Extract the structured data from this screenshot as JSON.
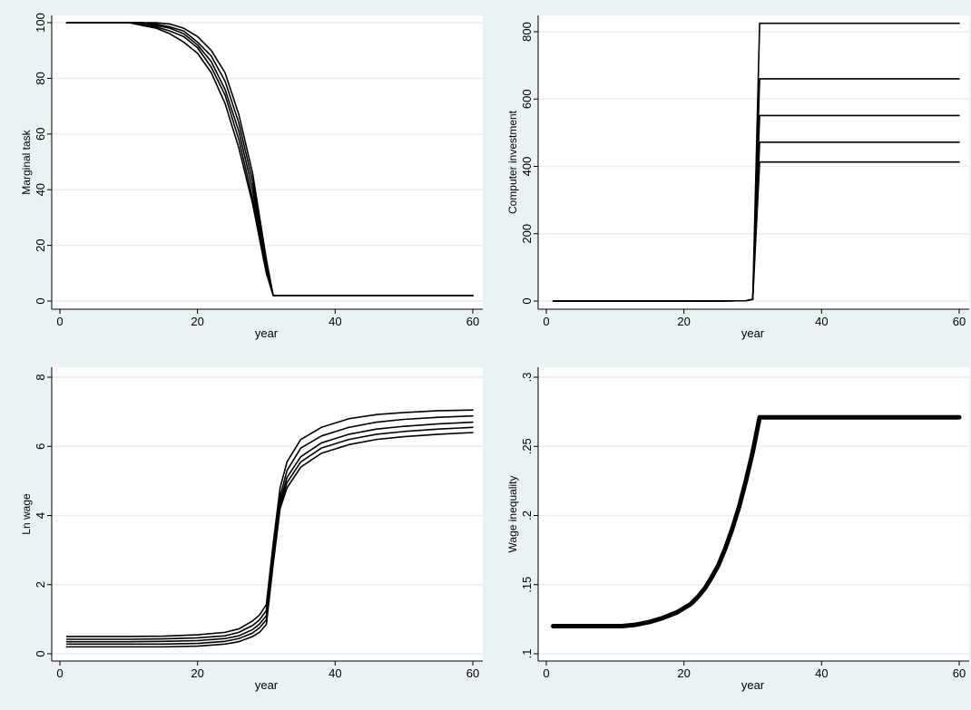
{
  "chart_data": [
    {
      "type": "line",
      "xlabel": "year",
      "ylabel": "Marginal task",
      "xlim": [
        0,
        60
      ],
      "ylim": [
        0,
        100
      ],
      "xticks": [
        0,
        20,
        40,
        60
      ],
      "yticks": [
        0,
        20,
        40,
        60,
        80,
        100
      ],
      "grid": true,
      "line_color": "#000000",
      "series": [
        {
          "x": [
            1,
            8,
            10,
            12,
            14,
            16,
            18,
            20,
            22,
            24,
            26,
            28,
            30,
            31,
            60
          ],
          "y": [
            100,
            100,
            100,
            99,
            98,
            96,
            93,
            89,
            82,
            71,
            55,
            35,
            10,
            2,
            2
          ]
        },
        {
          "x": [
            1,
            10,
            12,
            14,
            16,
            18,
            20,
            22,
            24,
            26,
            28,
            30,
            31,
            60
          ],
          "y": [
            100,
            100,
            99.5,
            98.5,
            97,
            95,
            91,
            84,
            74,
            58,
            37,
            11,
            2,
            2
          ]
        },
        {
          "x": [
            1,
            11,
            12,
            14,
            16,
            18,
            20,
            22,
            24,
            26,
            28,
            30,
            31,
            60
          ],
          "y": [
            100,
            100,
            100,
            99,
            98,
            96,
            92,
            86,
            76,
            61,
            40,
            12,
            2,
            2
          ]
        },
        {
          "x": [
            1,
            12,
            14,
            16,
            18,
            20,
            22,
            24,
            26,
            28,
            30,
            31,
            60
          ],
          "y": [
            100,
            100,
            99.5,
            98.5,
            97,
            93,
            88,
            79,
            64,
            43,
            13,
            2,
            2
          ]
        },
        {
          "x": [
            1,
            14,
            16,
            18,
            20,
            22,
            24,
            26,
            28,
            30,
            31,
            60
          ],
          "y": [
            100,
            100,
            99.5,
            98,
            95,
            90,
            82,
            67,
            46,
            15,
            2,
            2
          ]
        }
      ]
    },
    {
      "type": "line",
      "xlabel": "year",
      "ylabel": "Computer investment",
      "xlim": [
        0,
        60
      ],
      "ylim": [
        0,
        800
      ],
      "xticks": [
        0,
        20,
        40,
        60
      ],
      "yticks": [
        0,
        200,
        400,
        600,
        800
      ],
      "grid": true,
      "line_color": "#000000",
      "series": [
        {
          "x": [
            1,
            25,
            29,
            30,
            31,
            60
          ],
          "y": [
            0,
            0,
            1,
            5,
            413,
            413
          ]
        },
        {
          "x": [
            1,
            25,
            29,
            30,
            31,
            60
          ],
          "y": [
            0,
            0,
            1,
            5,
            472,
            472
          ]
        },
        {
          "x": [
            1,
            25,
            29,
            30,
            31,
            60
          ],
          "y": [
            0,
            0,
            1,
            5,
            551,
            551
          ]
        },
        {
          "x": [
            1,
            25,
            29,
            30,
            31,
            60
          ],
          "y": [
            0,
            0,
            1,
            5,
            660,
            660
          ]
        },
        {
          "x": [
            1,
            25,
            29,
            30,
            31,
            60
          ],
          "y": [
            0,
            0,
            1,
            5,
            825,
            825
          ]
        }
      ]
    },
    {
      "type": "line",
      "xlabel": "year",
      "ylabel": "Ln wage",
      "xlim": [
        0,
        60
      ],
      "ylim": [
        0,
        8
      ],
      "xticks": [
        0,
        20,
        40,
        60
      ],
      "yticks": [
        0,
        2,
        4,
        6,
        8
      ],
      "grid": true,
      "line_color": "#000000",
      "series": [
        {
          "x": [
            1,
            10,
            15,
            20,
            24,
            26,
            28,
            29,
            30,
            31,
            32,
            33,
            35,
            38,
            42,
            46,
            50,
            55,
            60
          ],
          "y": [
            0.2,
            0.2,
            0.2,
            0.22,
            0.28,
            0.35,
            0.5,
            0.62,
            0.85,
            2.6,
            4.2,
            4.8,
            5.4,
            5.8,
            6.05,
            6.2,
            6.28,
            6.35,
            6.4
          ]
        },
        {
          "x": [
            1,
            10,
            15,
            20,
            24,
            26,
            28,
            29,
            30,
            31,
            32,
            33,
            35,
            38,
            42,
            46,
            50,
            55,
            60
          ],
          "y": [
            0.28,
            0.28,
            0.28,
            0.3,
            0.36,
            0.44,
            0.6,
            0.75,
            0.98,
            2.75,
            4.3,
            4.95,
            5.55,
            5.95,
            6.2,
            6.35,
            6.43,
            6.5,
            6.55
          ]
        },
        {
          "x": [
            1,
            10,
            15,
            20,
            24,
            26,
            28,
            29,
            30,
            31,
            32,
            33,
            35,
            38,
            42,
            46,
            50,
            55,
            60
          ],
          "y": [
            0.35,
            0.35,
            0.36,
            0.38,
            0.44,
            0.52,
            0.7,
            0.86,
            1.1,
            2.9,
            4.4,
            5.1,
            5.7,
            6.1,
            6.35,
            6.5,
            6.58,
            6.65,
            6.7
          ]
        },
        {
          "x": [
            1,
            10,
            15,
            20,
            24,
            26,
            28,
            29,
            30,
            31,
            32,
            33,
            35,
            38,
            42,
            46,
            50,
            55,
            60
          ],
          "y": [
            0.42,
            0.42,
            0.43,
            0.46,
            0.52,
            0.62,
            0.82,
            0.98,
            1.25,
            3.05,
            4.55,
            5.3,
            5.95,
            6.3,
            6.55,
            6.7,
            6.78,
            6.84,
            6.88
          ]
        },
        {
          "x": [
            1,
            10,
            15,
            20,
            24,
            26,
            28,
            29,
            30,
            31,
            32,
            33,
            35,
            38,
            42,
            46,
            50,
            55,
            60
          ],
          "y": [
            0.5,
            0.5,
            0.51,
            0.55,
            0.62,
            0.72,
            0.95,
            1.12,
            1.42,
            3.2,
            4.8,
            5.55,
            6.2,
            6.55,
            6.8,
            6.92,
            6.98,
            7.03,
            7.05
          ]
        }
      ]
    },
    {
      "type": "line",
      "xlabel": "year",
      "ylabel": "Wage inequality",
      "xlim": [
        0,
        60
      ],
      "ylim": [
        0.1,
        0.3
      ],
      "xticks": [
        0,
        20,
        40,
        60
      ],
      "yticks": [
        0.1,
        0.15,
        0.2,
        0.25,
        0.3
      ],
      "ytick_labels": [
        ".1",
        ".15",
        ".2",
        ".25",
        ".3"
      ],
      "grid": true,
      "line_color": "#000000",
      "series": [
        {
          "x": [
            1,
            11,
            13,
            15,
            17,
            19,
            21,
            22,
            23,
            24,
            25,
            26,
            27,
            28,
            29,
            30,
            31,
            60
          ],
          "y": [
            0.12,
            0.12,
            0.121,
            0.123,
            0.126,
            0.13,
            0.136,
            0.141,
            0.147,
            0.155,
            0.164,
            0.176,
            0.19,
            0.206,
            0.225,
            0.246,
            0.271,
            0.271
          ]
        }
      ]
    }
  ]
}
